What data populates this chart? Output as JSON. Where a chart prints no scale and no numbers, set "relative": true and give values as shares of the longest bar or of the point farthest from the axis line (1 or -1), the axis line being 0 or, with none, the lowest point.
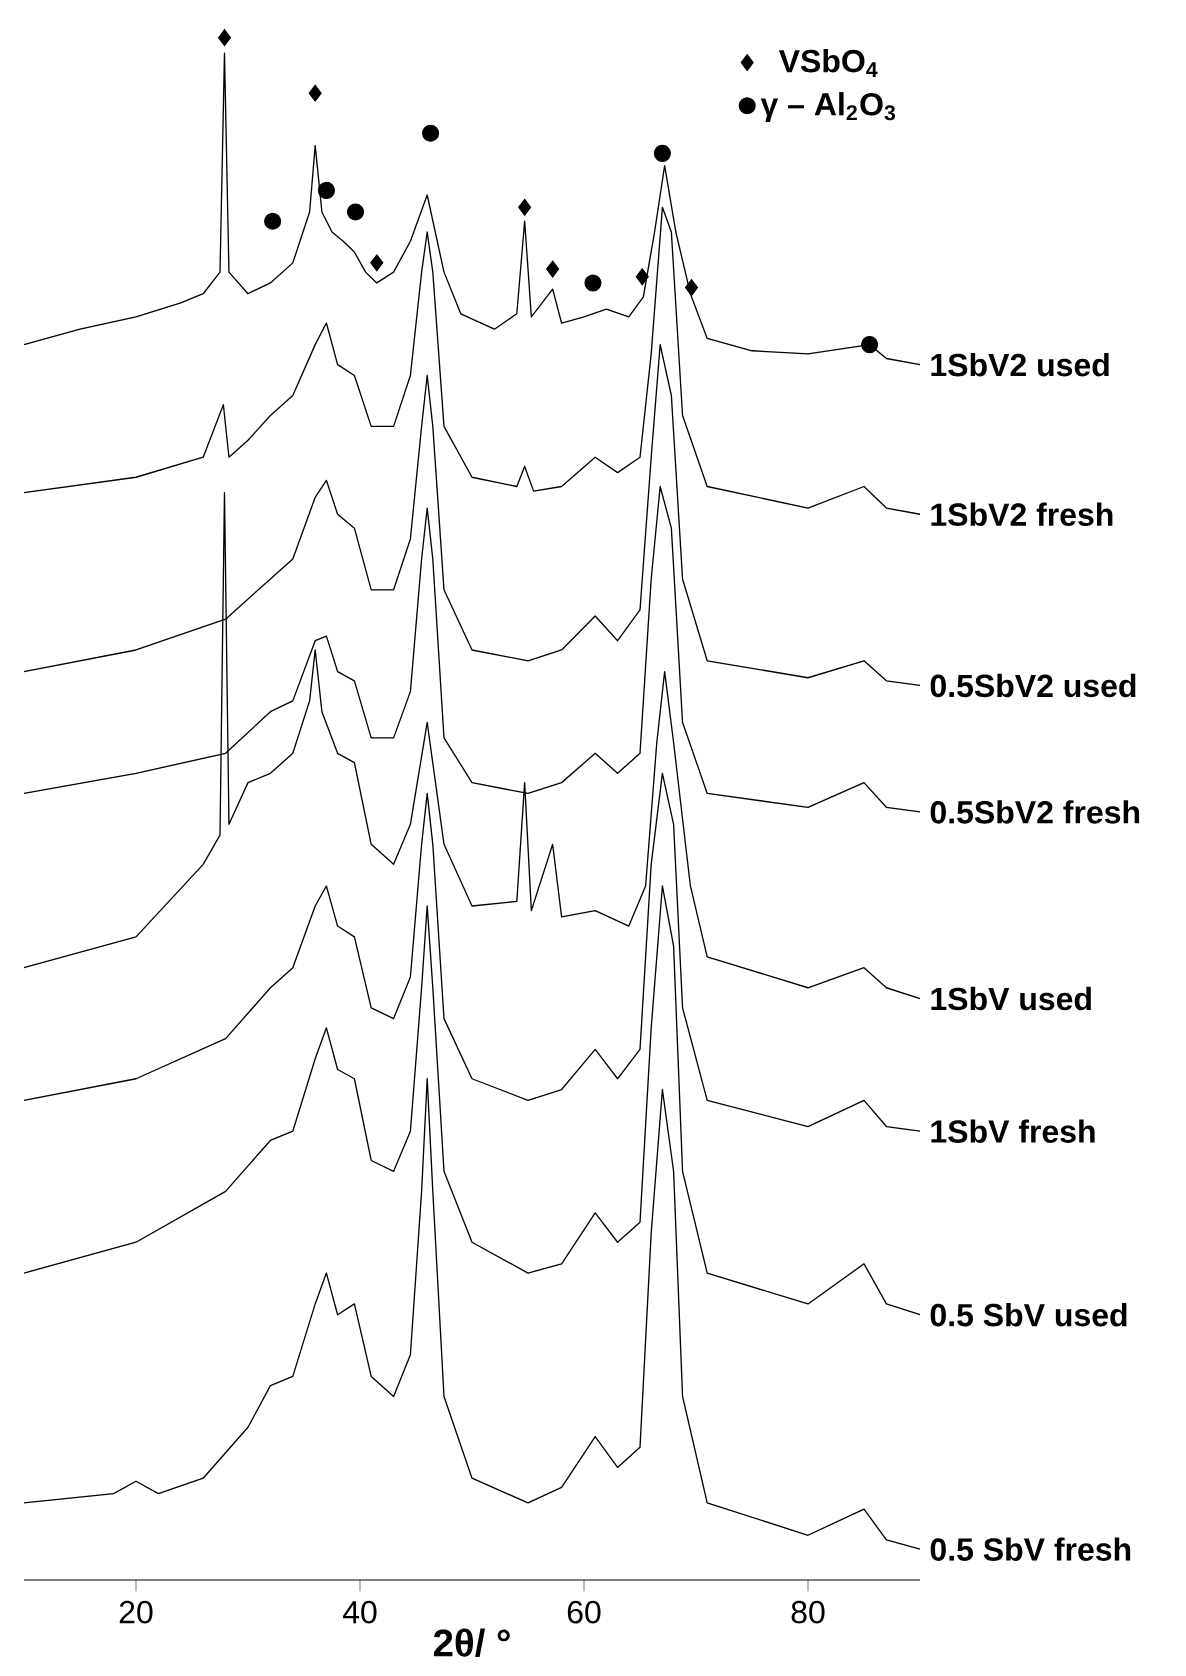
{
  "chart_data": {
    "type": "line",
    "relative": true,
    "xlabel": "2θ/ °",
    "xlim": [
      10,
      90
    ],
    "xticks": [
      20,
      40,
      60,
      80
    ],
    "legend": "top right",
    "series": [
      {
        "name": "1SbV2 used",
        "color": "#000000",
        "x": [
          10,
          15,
          20,
          24,
          26,
          27.5,
          27.9,
          28.3,
          30,
          32,
          34,
          35.5,
          36,
          36.6,
          37.5,
          38.5,
          39.5,
          40.5,
          41.5,
          43,
          44.5,
          46,
          47.5,
          49,
          52,
          54,
          54.7,
          55.3,
          57.2,
          58,
          60,
          62,
          64,
          65.3,
          66.3,
          67.2,
          68.2,
          69.5,
          71,
          75,
          80,
          85.5,
          87,
          90
        ],
        "values": [
          0.801,
          0.811,
          0.819,
          0.828,
          0.834,
          0.848,
          0.99,
          0.848,
          0.834,
          0.841,
          0.854,
          0.887,
          0.93,
          0.887,
          0.874,
          0.868,
          0.861,
          0.848,
          0.841,
          0.848,
          0.868,
          0.898,
          0.848,
          0.821,
          0.811,
          0.821,
          0.881,
          0.819,
          0.837,
          0.815,
          0.819,
          0.824,
          0.819,
          0.832,
          0.874,
          0.917,
          0.874,
          0.834,
          0.805,
          0.797,
          0.795,
          0.801,
          0.792,
          0.788
        ]
      },
      {
        "name": "1SbV2  fresh",
        "color": "#000000",
        "x": [
          10,
          20,
          26,
          27.8,
          28.3,
          30,
          32,
          34,
          36,
          37,
          38,
          39.5,
          41,
          43,
          44.5,
          45.5,
          46,
          46.5,
          47.5,
          50,
          54,
          54.7,
          55.5,
          58,
          61,
          63,
          65,
          66,
          67,
          67.8,
          68.8,
          71,
          80,
          85,
          87,
          90
        ],
        "values": [
          0.705,
          0.715,
          0.728,
          0.762,
          0.728,
          0.739,
          0.755,
          0.768,
          0.801,
          0.815,
          0.788,
          0.781,
          0.748,
          0.748,
          0.781,
          0.848,
          0.874,
          0.848,
          0.748,
          0.715,
          0.709,
          0.722,
          0.706,
          0.709,
          0.728,
          0.718,
          0.728,
          0.795,
          0.89,
          0.874,
          0.755,
          0.709,
          0.695,
          0.709,
          0.695,
          0.691
        ]
      },
      {
        "name": "0.5SbV2 used",
        "color": "#000000",
        "x": [
          10,
          20,
          28,
          32,
          34,
          36,
          37,
          38,
          39.5,
          41,
          43,
          44.5,
          45.5,
          46,
          46.5,
          47.5,
          50,
          55,
          58,
          61,
          63,
          65,
          66,
          66.8,
          67.8,
          68.8,
          71,
          80,
          85,
          87,
          90
        ],
        "values": [
          0.589,
          0.603,
          0.623,
          0.649,
          0.662,
          0.702,
          0.713,
          0.691,
          0.682,
          0.642,
          0.642,
          0.675,
          0.748,
          0.781,
          0.748,
          0.642,
          0.603,
          0.596,
          0.603,
          0.625,
          0.609,
          0.629,
          0.728,
          0.801,
          0.768,
          0.649,
          0.596,
          0.585,
          0.596,
          0.583,
          0.58
        ]
      },
      {
        "name": "0.5SbV2 fresh",
        "color": "#000000",
        "x": [
          10,
          20,
          28,
          32,
          34,
          36,
          37,
          38,
          39.5,
          41,
          43,
          44.5,
          45.5,
          46,
          46.5,
          47.5,
          50,
          55,
          58,
          61,
          63,
          65,
          66,
          66.8,
          67.8,
          68.8,
          71,
          80,
          85,
          87,
          90
        ],
        "values": [
          0.51,
          0.523,
          0.536,
          0.563,
          0.57,
          0.609,
          0.612,
          0.589,
          0.583,
          0.546,
          0.546,
          0.576,
          0.662,
          0.695,
          0.662,
          0.546,
          0.517,
          0.51,
          0.517,
          0.536,
          0.523,
          0.536,
          0.649,
          0.709,
          0.682,
          0.556,
          0.51,
          0.501,
          0.517,
          0.501,
          0.498
        ]
      },
      {
        "name": "1SbV used",
        "color": "#000000",
        "x": [
          10,
          20,
          26,
          27.5,
          27.9,
          28.3,
          30,
          32,
          34,
          35.5,
          36,
          36.6,
          38,
          39.5,
          41,
          43,
          44.5,
          46,
          47.5,
          50,
          54,
          54.7,
          55.3,
          57.2,
          58,
          61,
          64,
          65.5,
          66.5,
          67.2,
          68,
          69.5,
          71,
          80,
          85,
          87,
          90
        ],
        "values": [
          0.397,
          0.417,
          0.464,
          0.483,
          0.705,
          0.49,
          0.517,
          0.523,
          0.536,
          0.57,
          0.603,
          0.563,
          0.536,
          0.53,
          0.477,
          0.464,
          0.49,
          0.556,
          0.477,
          0.437,
          0.44,
          0.517,
          0.434,
          0.477,
          0.43,
          0.434,
          0.424,
          0.45,
          0.543,
          0.589,
          0.543,
          0.45,
          0.404,
          0.384,
          0.397,
          0.384,
          0.377
        ]
      },
      {
        "name": "1SbV fresh",
        "color": "#000000",
        "x": [
          10,
          20,
          28,
          32,
          34,
          36,
          37,
          38,
          39.5,
          41,
          43,
          44.5,
          45.5,
          46,
          46.5,
          47.5,
          50,
          55,
          58,
          61,
          63,
          65,
          66,
          67,
          68,
          68.8,
          71,
          80,
          85,
          87,
          90
        ],
        "values": [
          0.311,
          0.325,
          0.351,
          0.384,
          0.397,
          0.437,
          0.45,
          0.424,
          0.417,
          0.371,
          0.364,
          0.391,
          0.477,
          0.51,
          0.477,
          0.364,
          0.325,
          0.311,
          0.318,
          0.344,
          0.325,
          0.344,
          0.464,
          0.523,
          0.49,
          0.371,
          0.311,
          0.294,
          0.311,
          0.294,
          0.291
        ]
      },
      {
        "name": "0.5 SbV used",
        "color": "#000000",
        "x": [
          10,
          20,
          28,
          32,
          34,
          36,
          37,
          38,
          39.5,
          41,
          43,
          44.5,
          45.5,
          46,
          46.5,
          47.5,
          50,
          55,
          58,
          61,
          63,
          65,
          66,
          67,
          68,
          68.8,
          71,
          80,
          85,
          87,
          90
        ],
        "values": [
          0.199,
          0.219,
          0.252,
          0.285,
          0.291,
          0.338,
          0.358,
          0.331,
          0.325,
          0.272,
          0.265,
          0.291,
          0.384,
          0.437,
          0.384,
          0.265,
          0.219,
          0.199,
          0.205,
          0.238,
          0.219,
          0.232,
          0.358,
          0.45,
          0.411,
          0.265,
          0.199,
          0.179,
          0.205,
          0.179,
          0.172
        ]
      },
      {
        "name": "0.5 SbV fresh",
        "color": "#000000",
        "x": [
          10,
          18,
          20,
          22,
          26,
          30,
          32,
          34,
          36,
          37,
          38,
          39.5,
          41,
          43,
          44.5,
          45.5,
          46,
          46.5,
          47.5,
          50,
          55,
          58,
          61,
          63,
          65,
          66,
          67,
          68,
          68.8,
          71,
          80,
          85,
          87,
          90
        ],
        "values": [
          0.05,
          0.056,
          0.064,
          0.056,
          0.066,
          0.099,
          0.126,
          0.132,
          0.179,
          0.199,
          0.172,
          0.179,
          0.132,
          0.119,
          0.146,
          0.252,
          0.325,
          0.252,
          0.119,
          0.066,
          0.05,
          0.06,
          0.093,
          0.073,
          0.086,
          0.225,
          0.318,
          0.265,
          0.119,
          0.05,
          0.029,
          0.046,
          0.026,
          0.02
        ]
      },
      {
        "name": "VSbO$_{4}$",
        "type": "scatter",
        "marker": "diamond",
        "color": "#000000",
        "x": [
          27.9,
          36,
          41.5,
          54.7,
          57.2,
          65.2,
          69.6
        ],
        "values": [
          1.0,
          0.964,
          0.854,
          0.89,
          0.85,
          0.845,
          0.838
        ]
      },
      {
        "name": "γ – Al$_{2}$O$_{3}$",
        "type": "scatter",
        "marker": "circle",
        "color": "#000000",
        "x": [
          32.2,
          37,
          39.6,
          46.3,
          60.8,
          67,
          85.5
        ],
        "values": [
          0.881,
          0.901,
          0.887,
          0.938,
          0.841,
          0.925,
          0.801
        ]
      }
    ]
  }
}
